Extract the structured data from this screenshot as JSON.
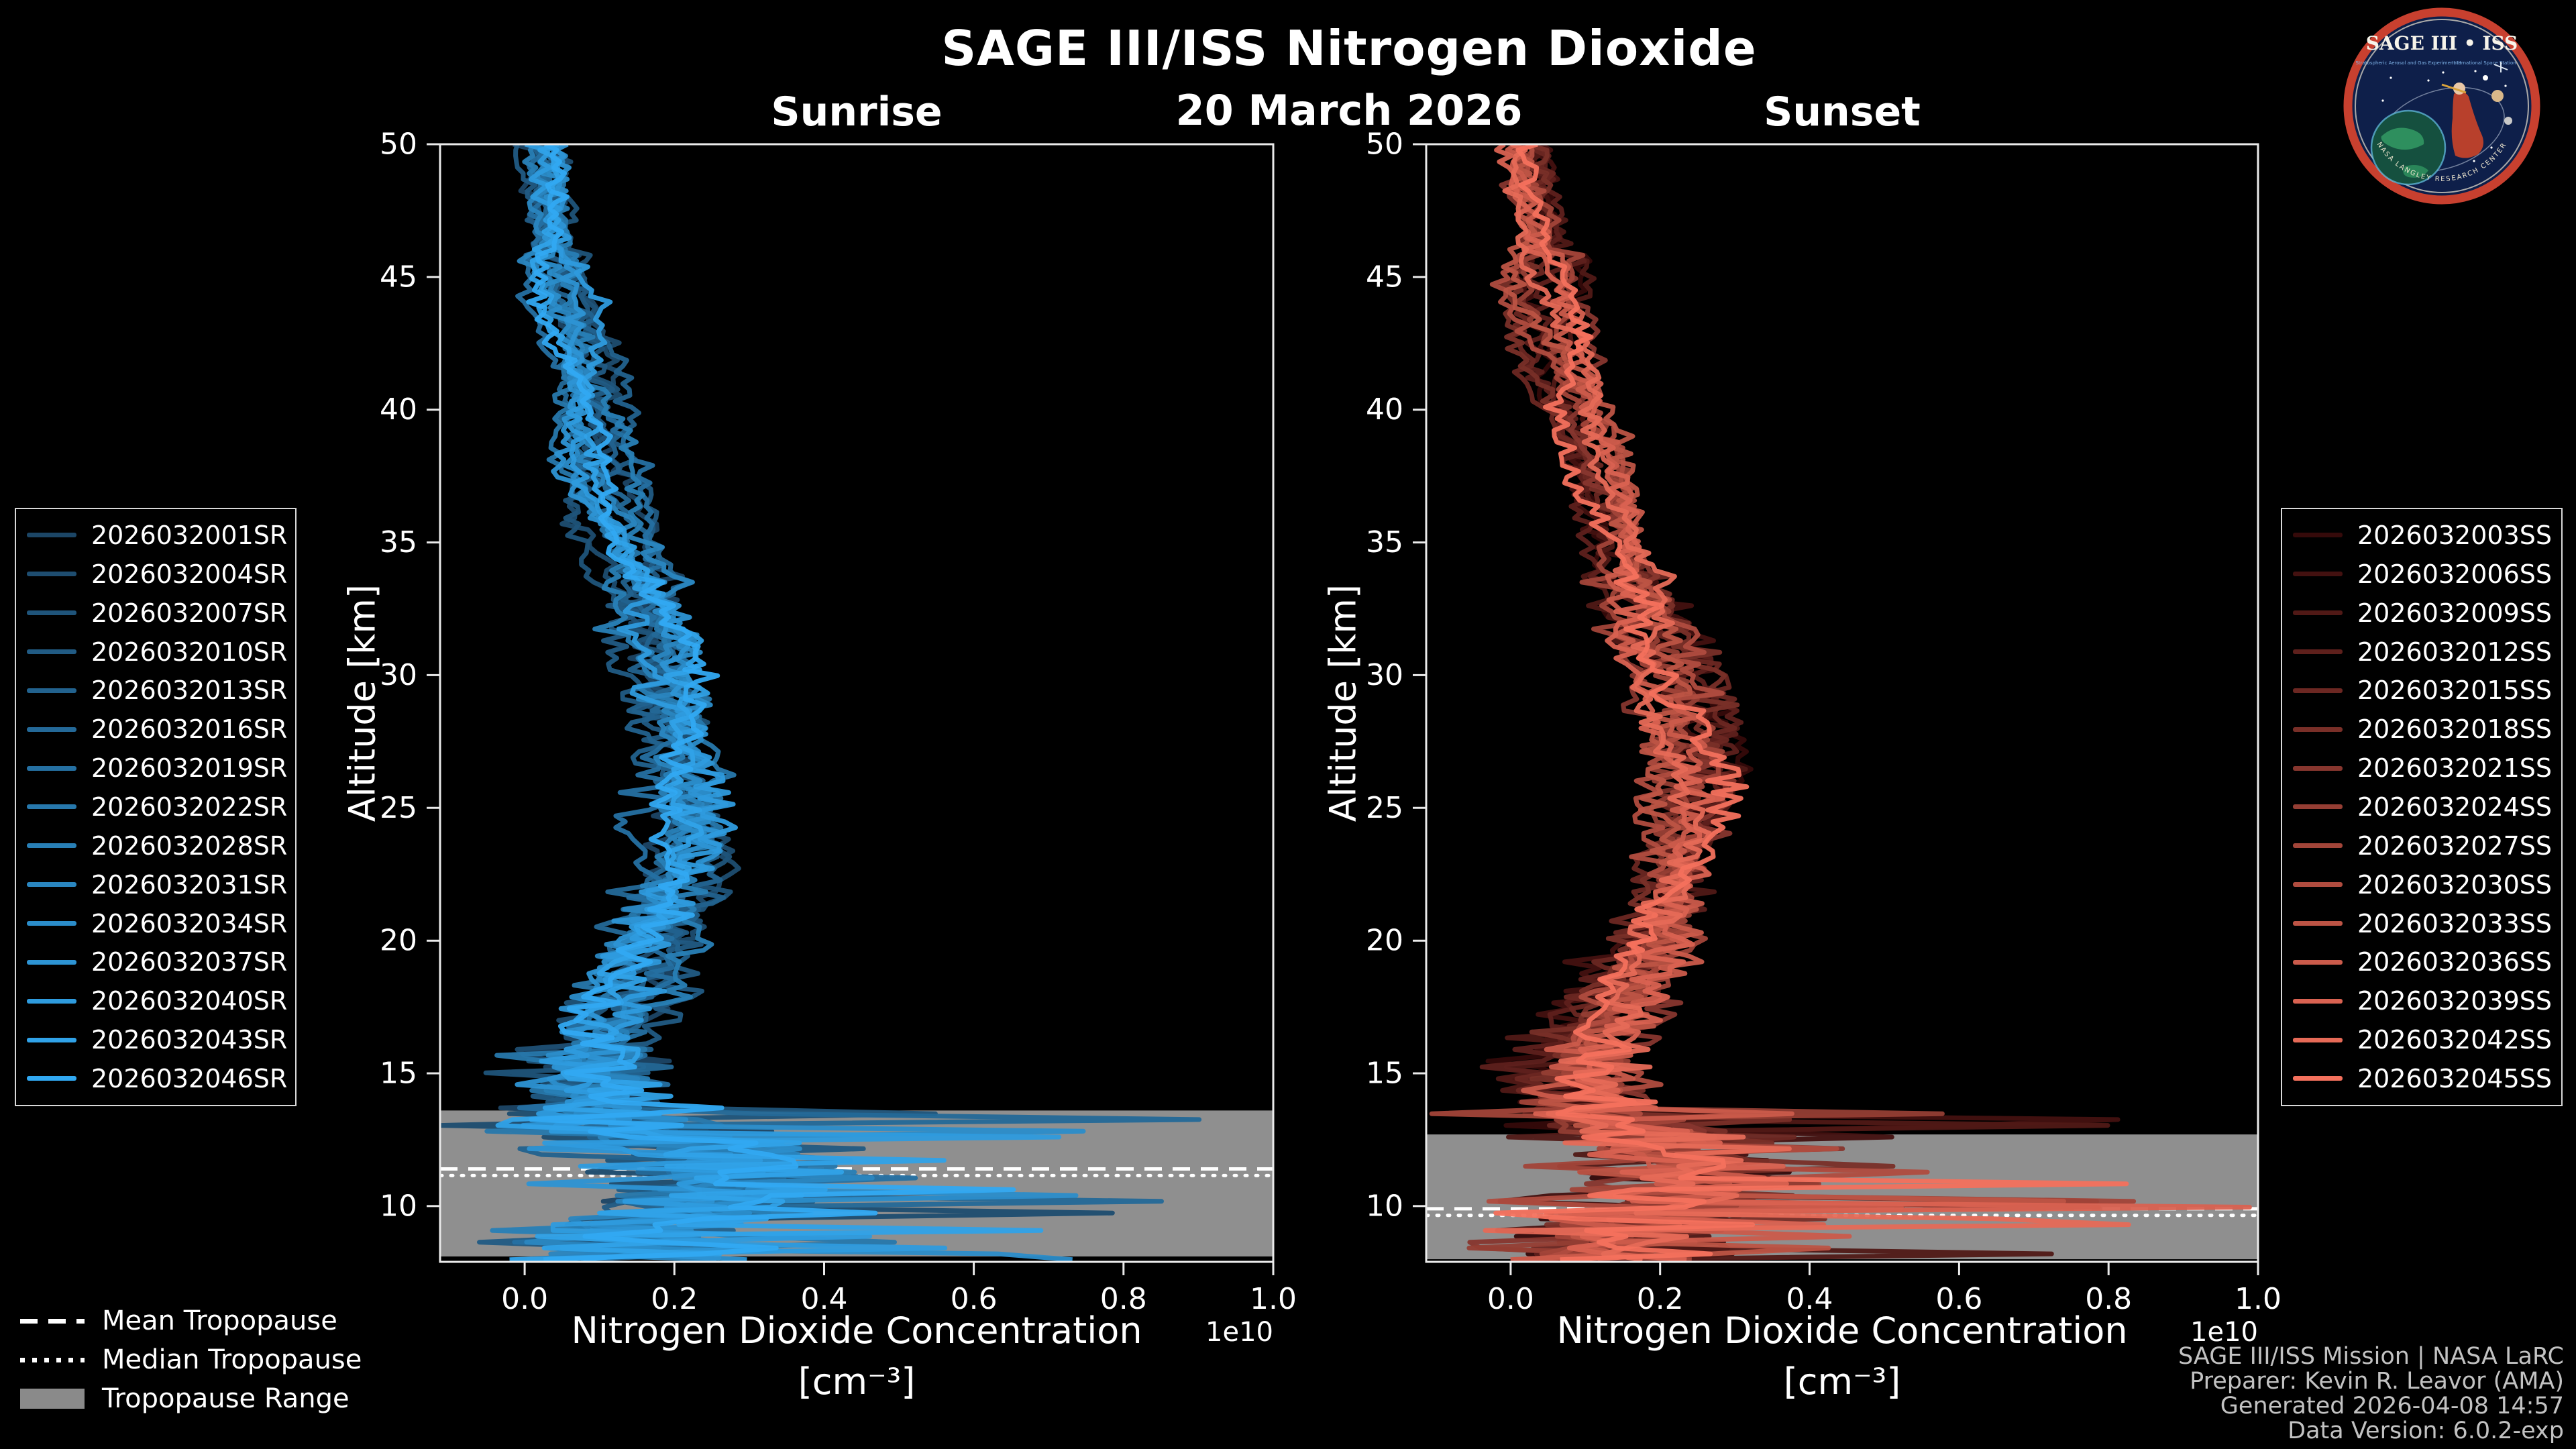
{
  "header": {
    "title": "SAGE III/ISS Nitrogen Dioxide",
    "date": "20 March 2026"
  },
  "logo": {
    "title": "SAGE III • ISS",
    "subtitle_left": "Stratospheric Aerosol and Gas Experiment III",
    "subtitle_right": "International Space Station",
    "ring_text": "NASA LANGLEY RESEARCH CENTER",
    "border_color": "#c8402f",
    "background_color": "#0e1f4a"
  },
  "colors": {
    "background": "#000000",
    "foreground": "#ffffff",
    "tropopause_band": "#8f8f8f",
    "sunrise_range": [
      "#1c4666",
      "#31a9f2"
    ],
    "sunset_range": [
      "#350a0a",
      "#f4715d"
    ]
  },
  "tropopause_legend": {
    "items": [
      {
        "label": "Mean Tropopause",
        "style": "dashed"
      },
      {
        "label": "Median Tropopause",
        "style": "dotted"
      },
      {
        "label": "Tropopause Range",
        "style": "patch"
      }
    ]
  },
  "footer": {
    "lines": [
      "SAGE III/ISS Mission | NASA LaRC",
      "Preparer: Kevin R. Leavor (AMA)",
      "Generated 2026-04-08 14:57",
      "Data Version: 6.0.2-exp"
    ]
  },
  "chart_data": [
    {
      "type": "line",
      "id": "sunrise",
      "title": "Sunrise",
      "xlabel": "Nitrogen Dioxide Concentration",
      "xunits": "[cm⁻³]",
      "x_scale_label": "1e10",
      "ylabel": "Altitude [km]",
      "xlim": [
        -0.113,
        1.0
      ],
      "ylim": [
        7.9,
        50
      ],
      "xticks": [
        0.0,
        0.2,
        0.4,
        0.6,
        0.8,
        1.0
      ],
      "xtick_labels": [
        "0.0",
        "0.2",
        "0.4",
        "0.6",
        "0.8",
        "1.0"
      ],
      "yticks": [
        10,
        15,
        20,
        25,
        30,
        35,
        40,
        45,
        50
      ],
      "ytick_labels": [
        "10",
        "15",
        "20",
        "25",
        "30",
        "35",
        "40",
        "45",
        "50"
      ],
      "series_names": [
        "2026032001SR",
        "2026032004SR",
        "2026032007SR",
        "2026032010SR",
        "2026032013SR",
        "2026032016SR",
        "2026032019SR",
        "2026032022SR",
        "2026032028SR",
        "2026032031SR",
        "2026032034SR",
        "2026032037SR",
        "2026032040SR",
        "2026032043SR",
        "2026032046SR"
      ],
      "color_range": [
        "#1c4666",
        "#31a9f2"
      ],
      "mean_profile": {
        "altitude_km": [
          50,
          47,
          44,
          41,
          38,
          35,
          32,
          30,
          28,
          26,
          24,
          22,
          20,
          18,
          16,
          15,
          14,
          13,
          12,
          11,
          10,
          9,
          8
        ],
        "concentration_1e10": [
          0.02,
          0.035,
          0.055,
          0.08,
          0.105,
          0.14,
          0.165,
          0.185,
          0.205,
          0.215,
          0.21,
          0.195,
          0.175,
          0.145,
          0.105,
          0.09,
          0.1,
          0.13,
          0.22,
          0.28,
          0.22,
          0.15,
          0.12
        ]
      },
      "tropopause": {
        "mean_km": 11.4,
        "median_km": 11.15,
        "range_km": [
          8.1,
          13.6
        ]
      }
    },
    {
      "type": "line",
      "id": "sunset",
      "title": "Sunset",
      "xlabel": "Nitrogen Dioxide Concentration",
      "xunits": "[cm⁻³]",
      "x_scale_label": "1e10",
      "ylabel": "Altitude [km]",
      "xlim": [
        -0.113,
        1.0
      ],
      "ylim": [
        7.9,
        50
      ],
      "xticks": [
        0.0,
        0.2,
        0.4,
        0.6,
        0.8,
        1.0
      ],
      "xtick_labels": [
        "0.0",
        "0.2",
        "0.4",
        "0.6",
        "0.8",
        "1.0"
      ],
      "yticks": [
        10,
        15,
        20,
        25,
        30,
        35,
        40,
        45,
        50
      ],
      "ytick_labels": [
        "10",
        "15",
        "20",
        "25",
        "30",
        "35",
        "40",
        "45",
        "50"
      ],
      "series_names": [
        "2026032003SS",
        "2026032006SS",
        "2026032009SS",
        "2026032012SS",
        "2026032015SS",
        "2026032018SS",
        "2026032021SS",
        "2026032024SS",
        "2026032027SS",
        "2026032030SS",
        "2026032033SS",
        "2026032036SS",
        "2026032039SS",
        "2026032042SS",
        "2026032045SS"
      ],
      "color_range": [
        "#350a0a",
        "#f4715d"
      ],
      "mean_profile": {
        "altitude_km": [
          50,
          47,
          44,
          41,
          38,
          35,
          32,
          30,
          28,
          26,
          24,
          22,
          20,
          18,
          16,
          15,
          14,
          13,
          12,
          11,
          10,
          9,
          8
        ],
        "concentration_1e10": [
          0.02,
          0.03,
          0.05,
          0.08,
          0.11,
          0.15,
          0.185,
          0.21,
          0.235,
          0.25,
          0.24,
          0.215,
          0.185,
          0.15,
          0.11,
          0.095,
          0.105,
          0.14,
          0.21,
          0.25,
          0.19,
          0.13,
          0.1
        ]
      },
      "tropopause": {
        "mean_km": 9.9,
        "median_km": 9.65,
        "range_km": [
          8.0,
          12.7
        ]
      }
    }
  ]
}
